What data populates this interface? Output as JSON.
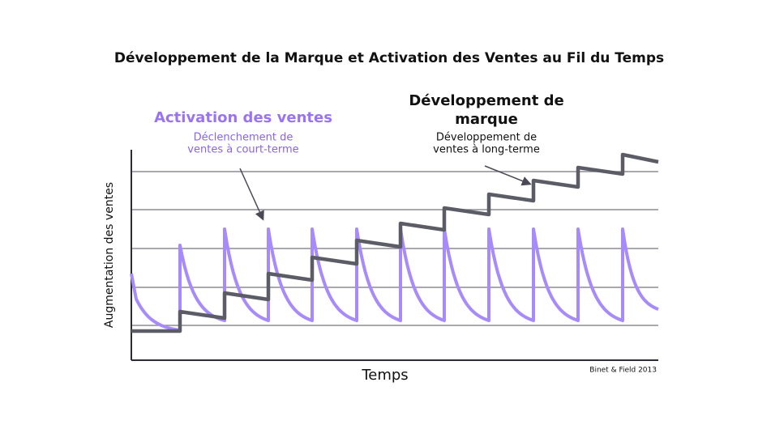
{
  "title": "Développement de la Marque et Activation des Ventes au Fil du Temps",
  "activation": {
    "heading": "Activation des ventes",
    "lines": [
      "Déclenchement de",
      "ventes à court-terme"
    ]
  },
  "brand": {
    "heading_lines": [
      "Développement de",
      "marque"
    ],
    "lines": [
      "Développement de",
      "ventes à long-terme"
    ]
  },
  "y_label": "Augmentation des ventes",
  "x_label": "Temps",
  "source": "Binet & Field 2013"
}
